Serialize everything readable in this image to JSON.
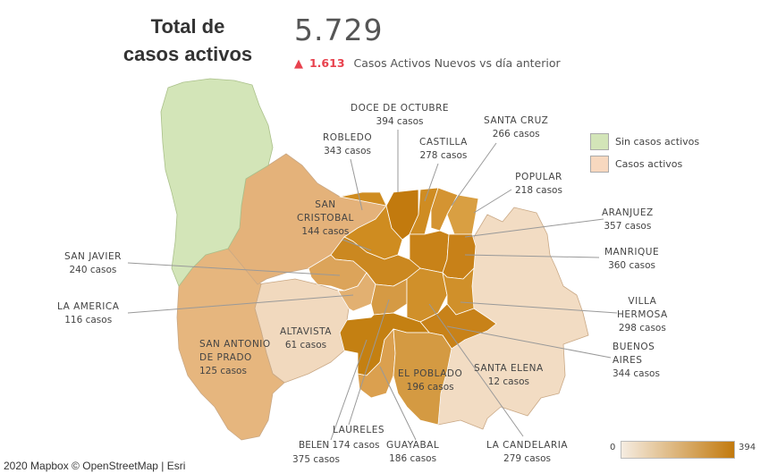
{
  "header": {
    "title_line1": "Total de",
    "title_line2": "casos activos",
    "total": "5.729",
    "delta_arrow": "▲",
    "delta_value": "1.613",
    "delta_text": "Casos Activos Nuevos  vs día anterior"
  },
  "legend": {
    "none": {
      "label": "Sin casos activos",
      "color": "#d3e5b8"
    },
    "active": {
      "label": "Casos activos",
      "color": "#f7d8bf"
    }
  },
  "scale": {
    "min": "0",
    "max": "394",
    "color_min": "#f5ece1",
    "color_max": "#c27a0e"
  },
  "attribution": "2020 Mapbox  © OpenStreetMap  |  Esri",
  "comunas": [
    {
      "key": "doce_octubre",
      "name": "DOCE DE OCTUBRE",
      "cases": "394 casos"
    },
    {
      "key": "santa_cruz",
      "name": "SANTA CRUZ",
      "cases": "266 casos"
    },
    {
      "key": "robledo",
      "name": "ROBLEDO",
      "cases": "343 casos"
    },
    {
      "key": "castilla",
      "name": "CASTILLA",
      "cases": "278 casos"
    },
    {
      "key": "popular",
      "name": "POPULAR",
      "cases": "218 casos"
    },
    {
      "key": "san_cristobal",
      "name1": "SAN",
      "name2": "CRISTOBAL",
      "cases": "144 casos"
    },
    {
      "key": "aranjuez",
      "name": "ARANJUEZ",
      "cases": "357 casos"
    },
    {
      "key": "san_javier",
      "name": "SAN JAVIER",
      "cases": "240 casos"
    },
    {
      "key": "manrique",
      "name": "MANRIQUE",
      "cases": "360 casos"
    },
    {
      "key": "la_america",
      "name": "LA AMERICA",
      "cases": "116 casos"
    },
    {
      "key": "villa_hermosa",
      "name1": "VILLA",
      "name2": "HERMOSA",
      "cases": "298 casos"
    },
    {
      "key": "altavista",
      "name": "ALTAVISTA",
      "cases": "61 casos"
    },
    {
      "key": "san_antonio",
      "name1": "SAN ANTONIO",
      "name2": "DE PRADO",
      "cases": "125 casos"
    },
    {
      "key": "buenos_aires",
      "name1": "BUENOS",
      "name2": "AIRES",
      "cases": "344 casos"
    },
    {
      "key": "el_poblado",
      "name": "EL POBLADO",
      "cases": "196 casos"
    },
    {
      "key": "santa_elena",
      "name": "SANTA ELENA",
      "cases": "12 casos"
    },
    {
      "key": "laureles",
      "name": "LAURELES",
      "cases": "375 casos"
    },
    {
      "key": "belen",
      "name": "BELEN",
      "cases": "174 casos"
    },
    {
      "key": "guayabal",
      "name": "GUAYABAL",
      "cases": "186 casos"
    },
    {
      "key": "la_candelaria",
      "name": "LA CANDELARIA",
      "cases": "279 casos"
    }
  ]
}
